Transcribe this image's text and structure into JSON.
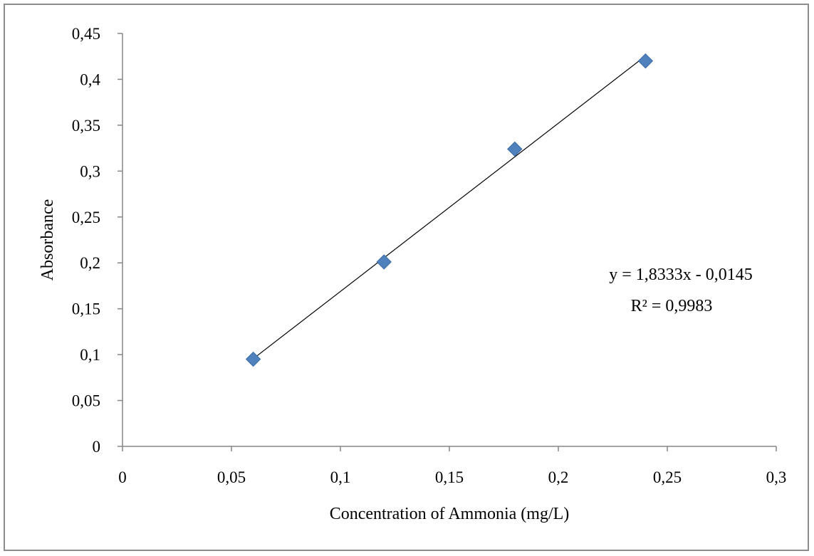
{
  "chart_data": {
    "type": "scatter",
    "title": "",
    "xlabel": "Concentration of Ammonia (mg/L)",
    "ylabel": "Absorbance",
    "xlim": [
      0,
      0.3
    ],
    "ylim": [
      0,
      0.45
    ],
    "x_ticks": [
      0,
      0.05,
      0.1,
      0.15,
      0.2,
      0.25,
      0.3
    ],
    "x_tick_labels": [
      "0",
      "0,05",
      "0,1",
      "0,15",
      "0,2",
      "0,25",
      "0,3"
    ],
    "y_ticks": [
      0,
      0.05,
      0.1,
      0.15,
      0.2,
      0.25,
      0.3,
      0.35,
      0.4,
      0.45
    ],
    "y_tick_labels": [
      "0",
      "0,05",
      "0,1",
      "0,15",
      "0,2",
      "0,25",
      "0,3",
      "0,35",
      "0,4",
      "0,45"
    ],
    "grid": false,
    "legend": "none",
    "series": [
      {
        "x": [
          0.06,
          0.12,
          0.18,
          0.24
        ],
        "y": [
          0.095,
          0.201,
          0.324,
          0.42
        ],
        "marker": "diamond",
        "color": "#4f81bd"
      }
    ],
    "trendline": {
      "type": "linear",
      "slope": 1.8333,
      "intercept": -0.0145,
      "x_range": [
        0.06,
        0.24
      ],
      "color": "#000000",
      "equation_label": "y = 1,8333x - 0,0145",
      "r2_label": "R² = 0,9983"
    }
  }
}
